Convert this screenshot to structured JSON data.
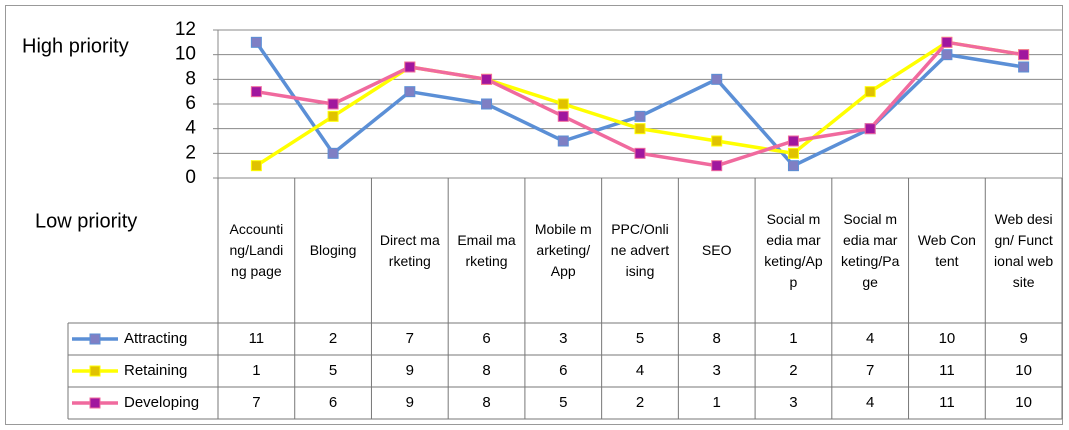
{
  "chart_data": {
    "type": "line",
    "annotations": [
      "High priority",
      "Low priority"
    ],
    "categories": [
      "Accounting/Landing page",
      "Bloging",
      "Direct marketing",
      "Email marketing",
      "Mobile marketing/ App",
      "PPC/Online advertising",
      "SEO",
      "Social media marketing/App",
      "Social media marketing/Page",
      "Web Content",
      "Web design/ Functional website"
    ],
    "series": [
      {
        "name": "Attracting",
        "color": "#5b8fd6",
        "marker_color": "#7f7fc4",
        "values": [
          11,
          2,
          7,
          6,
          3,
          5,
          8,
          1,
          4,
          10,
          9
        ]
      },
      {
        "name": "Retaining",
        "color": "#ffff00",
        "marker_color": "#e0c200",
        "values": [
          1,
          5,
          9,
          8,
          6,
          4,
          3,
          2,
          7,
          11,
          10
        ]
      },
      {
        "name": "Developing",
        "color": "#f06a9e",
        "marker_color": "#a0169e",
        "values": [
          7,
          6,
          9,
          8,
          5,
          2,
          1,
          3,
          4,
          11,
          10
        ]
      }
    ],
    "ylim": [
      0,
      12
    ],
    "yticks": [
      0,
      2,
      4,
      6,
      8,
      10,
      12
    ],
    "grid": true,
    "data_table": true
  }
}
